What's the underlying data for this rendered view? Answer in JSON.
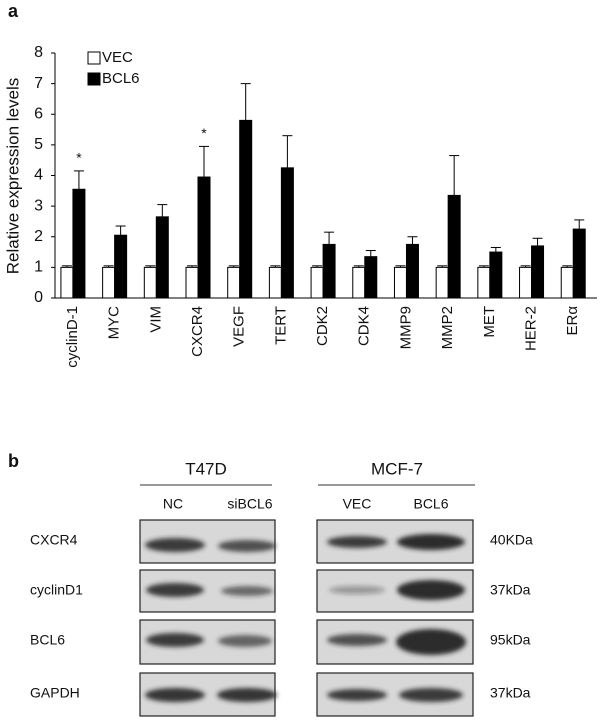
{
  "panel_labels": [
    "a",
    "b"
  ],
  "chart_data": {
    "type": "bar",
    "y_label": "Relative expression levels",
    "categories": [
      "cyclinD-1",
      "MYC",
      "VIM",
      "CXCR4",
      "VEGF",
      "TERT",
      "CDK2",
      "CDK4",
      "MMP9",
      "MMP2",
      "MET",
      "HER-2",
      "ERα"
    ],
    "series": [
      {
        "name": "VEC",
        "color": "#ffffff",
        "values": [
          1,
          1,
          1,
          1,
          1,
          1,
          1,
          1,
          1,
          1,
          1,
          1,
          1
        ],
        "errors": [
          0.05,
          0.05,
          0.05,
          0.05,
          0.05,
          0.05,
          0.05,
          0.05,
          0.05,
          0.05,
          0.05,
          0.05,
          0.05
        ]
      },
      {
        "name": "BCL6",
        "color": "#000000",
        "values": [
          3.55,
          2.05,
          2.65,
          3.95,
          5.8,
          4.25,
          1.75,
          1.35,
          1.75,
          3.35,
          1.5,
          1.7,
          2.25
        ],
        "errors": [
          0.6,
          0.3,
          0.4,
          1.0,
          1.2,
          1.05,
          0.4,
          0.2,
          0.25,
          1.3,
          0.15,
          0.25,
          0.3
        ]
      }
    ],
    "annotations": [
      {
        "text": "*",
        "category": "cyclinD-1"
      },
      {
        "text": "*",
        "category": "CXCR4"
      }
    ],
    "ylim": [
      0,
      8
    ],
    "yticks": [
      0,
      1,
      2,
      3,
      4,
      5,
      6,
      7,
      8
    ],
    "legend": "upper left"
  },
  "blot": {
    "groups": [
      {
        "label": "T47D",
        "columns": [
          "NC",
          "siBCL6"
        ]
      },
      {
        "label": "MCF-7",
        "columns": [
          "VEC",
          "BCL6"
        ]
      }
    ],
    "rows": [
      {
        "protein": "CXCR4",
        "size": "40KDa"
      },
      {
        "protein": "cyclinD1",
        "size": "37kDa"
      },
      {
        "protein": "BCL6",
        "size": "95kDa"
      },
      {
        "protein": "GAPDH",
        "size": "37kDa"
      }
    ]
  }
}
